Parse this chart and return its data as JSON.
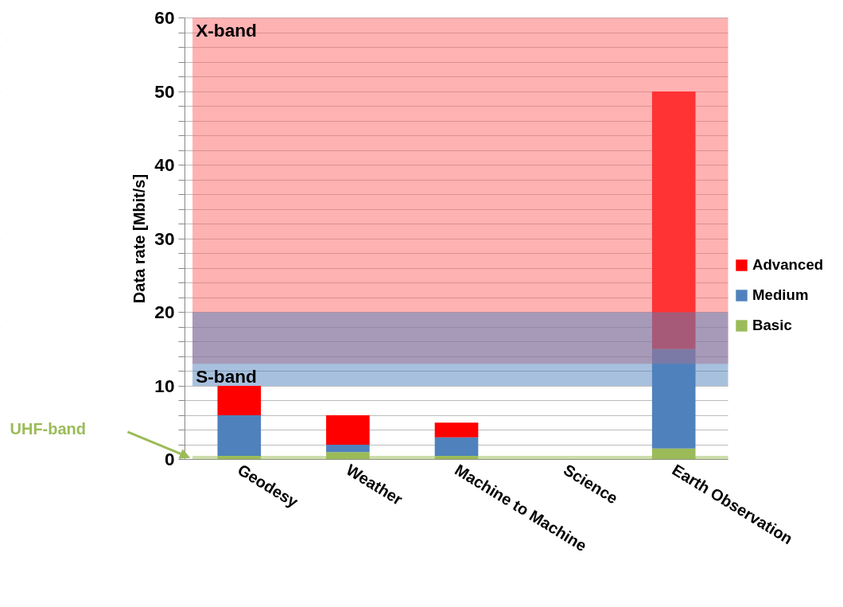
{
  "chart_data": {
    "type": "bar",
    "stacked": true,
    "ylabel": "Data rate [Mbit/s]",
    "categories": [
      "Geodesy",
      "Weather",
      "Machine to Machine",
      "Science",
      "Earth Observation"
    ],
    "series": [
      {
        "name": "Basic",
        "color": "#9bbb59",
        "values": [
          0.5,
          1,
          0.5,
          null,
          1.5
        ]
      },
      {
        "name": "Medium",
        "color": "#4f81bd",
        "values": [
          5.5,
          1,
          2.5,
          null,
          13.5
        ]
      },
      {
        "name": "Advanced",
        "color": "#ff0000",
        "values": [
          4,
          4,
          2,
          null,
          35
        ]
      }
    ],
    "ylim": [
      0,
      60
    ],
    "yticks": [
      0,
      {
        "value": 2,
        "label": null
      },
      {
        "value": 4,
        "label": null
      },
      {
        "value": 6,
        "label": null
      },
      {
        "value": 8,
        "label": null
      },
      10,
      {
        "value": 12,
        "label": null
      },
      {
        "value": 14,
        "label": null
      },
      {
        "value": 16,
        "label": null
      },
      {
        "value": 18,
        "label": null
      },
      20,
      {
        "value": 22,
        "label": null
      },
      {
        "value": 24,
        "label": null
      },
      {
        "value": 26,
        "label": null
      },
      {
        "value": 28,
        "label": null
      },
      30,
      {
        "value": 32,
        "label": null
      },
      {
        "value": 34,
        "label": null
      },
      {
        "value": 36,
        "label": null
      },
      {
        "value": 38,
        "label": null
      },
      40,
      {
        "value": 42,
        "label": null
      },
      {
        "value": 44,
        "label": null
      },
      {
        "value": 46,
        "label": null
      },
      {
        "value": 48,
        "label": null
      },
      50,
      {
        "value": 52,
        "label": null
      },
      {
        "value": 54,
        "label": null
      },
      {
        "value": 56,
        "label": null
      },
      {
        "value": 58,
        "label": null
      },
      60
    ],
    "bands": [
      {
        "axis": "y",
        "from": 13,
        "to": 60,
        "label": "X-band",
        "color": "#ff6666"
      },
      {
        "axis": "y",
        "from": 10,
        "to": 20,
        "label": "S-band",
        "color": "#4f81bd"
      },
      {
        "axis": "y",
        "from": 0,
        "to": 0.5,
        "label": "UHF-band",
        "color": "#9bbb59"
      }
    ],
    "grid": "y",
    "legend": "right"
  }
}
